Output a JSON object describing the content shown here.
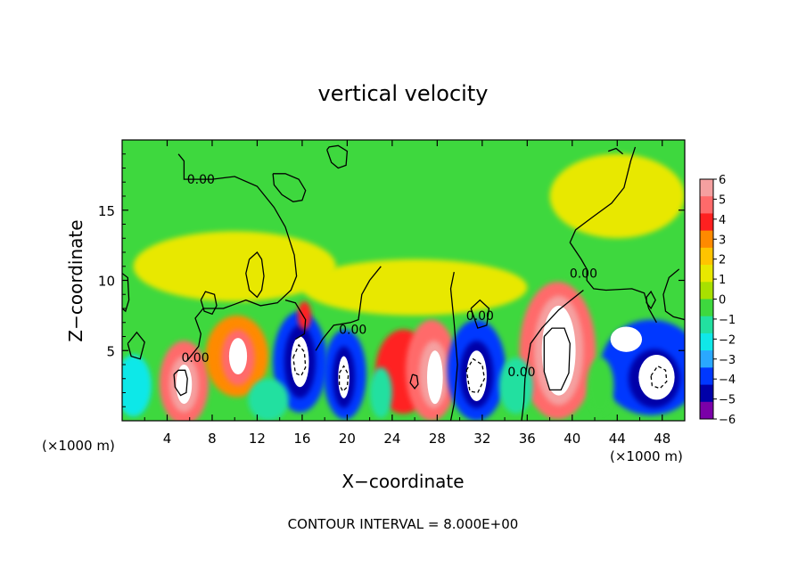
{
  "chart_data": {
    "type": "heatmap",
    "title": "vertical velocity",
    "xlabel": "X−coordinate",
    "ylabel": "Z−coordinate",
    "x_unit_left": "(×1000 m)",
    "x_unit_right": "(×1000 m)",
    "footer": "CONTOUR INTERVAL = 8.000E+00",
    "xlim": [
      0,
      50
    ],
    "ylim": [
      0,
      20
    ],
    "x_ticks": [
      4,
      8,
      12,
      16,
      20,
      24,
      28,
      32,
      36,
      40,
      44,
      48
    ],
    "y_ticks": [
      5,
      10,
      15
    ],
    "contour_labels": [
      {
        "text": "0.00",
        "x": 7.0,
        "y": 17.2
      },
      {
        "text": "0.00",
        "x": 6.5,
        "y": 4.5
      },
      {
        "text": "0.00",
        "x": 20.5,
        "y": 6.5
      },
      {
        "text": "0.00",
        "x": 31.8,
        "y": 7.5
      },
      {
        "text": "0.00",
        "x": 35.5,
        "y": 3.5
      },
      {
        "text": "0.00",
        "x": 41.0,
        "y": 10.5
      }
    ],
    "colorbar": {
      "min": -6,
      "max": 6,
      "labels": [
        6,
        5,
        4,
        3,
        2,
        1,
        0,
        -1,
        -2,
        -3,
        -4,
        -5,
        -6
      ],
      "colors": [
        "#f5a0a0",
        "#ff6a6a",
        "#ff2020",
        "#ff8a00",
        "#ffc400",
        "#e8e800",
        "#a8e000",
        "#3ed83e",
        "#22e0a0",
        "#10e8e8",
        "#2aa8ff",
        "#0038ff",
        "#0000a8",
        "#7a00a8"
      ]
    },
    "cells": [
      {
        "x": 5.5,
        "y": 2.7,
        "rx": 2.2,
        "ry": 3.0,
        "v": 4.5
      },
      {
        "x": 5.5,
        "y": 2.6,
        "rx": 1.3,
        "ry": 2.0,
        "v": 5.5
      },
      {
        "x": 5.5,
        "y": 2.6,
        "rx": 0.7,
        "ry": 1.4,
        "v": 6.6
      },
      {
        "x": 10.2,
        "y": 4.6,
        "rx": 2.8,
        "ry": 2.9,
        "v": 3.2
      },
      {
        "x": 10.3,
        "y": 4.5,
        "rx": 1.5,
        "ry": 2.0,
        "v": 5.0
      },
      {
        "x": 10.3,
        "y": 4.6,
        "rx": 0.8,
        "ry": 1.3,
        "v": 6.6
      },
      {
        "x": 15.8,
        "y": 4.2,
        "rx": 2.4,
        "ry": 3.6,
        "v": -4.5
      },
      {
        "x": 15.8,
        "y": 4.2,
        "rx": 1.4,
        "ry": 2.6,
        "v": -5.5
      },
      {
        "x": 15.8,
        "y": 4.2,
        "rx": 0.8,
        "ry": 1.8,
        "v": -6.6
      },
      {
        "x": 19.8,
        "y": 3.3,
        "rx": 1.9,
        "ry": 3.2,
        "v": -4.5
      },
      {
        "x": 19.7,
        "y": 3.1,
        "rx": 1.0,
        "ry": 2.2,
        "v": -5.5
      },
      {
        "x": 19.7,
        "y": 3.1,
        "rx": 0.5,
        "ry": 1.5,
        "v": -6.6
      },
      {
        "x": 25.0,
        "y": 3.5,
        "rx": 2.5,
        "ry": 3.0,
        "v": 3.5
      },
      {
        "x": 27.5,
        "y": 3.6,
        "rx": 2.3,
        "ry": 3.6,
        "v": 4.6
      },
      {
        "x": 27.7,
        "y": 3.3,
        "rx": 1.3,
        "ry": 2.4,
        "v": 5.6
      },
      {
        "x": 27.8,
        "y": 3.1,
        "rx": 0.7,
        "ry": 1.9,
        "v": 6.6
      },
      {
        "x": 31.5,
        "y": 3.6,
        "rx": 2.6,
        "ry": 3.6,
        "v": -4.5
      },
      {
        "x": 31.5,
        "y": 3.3,
        "rx": 1.5,
        "ry": 2.4,
        "v": -5.5
      },
      {
        "x": 31.5,
        "y": 3.2,
        "rx": 0.9,
        "ry": 1.8,
        "v": -6.6
      },
      {
        "x": 38.7,
        "y": 5.0,
        "rx": 3.4,
        "ry": 4.9,
        "v": 4.5
      },
      {
        "x": 38.8,
        "y": 5.0,
        "rx": 2.2,
        "ry": 3.9,
        "v": 5.6
      },
      {
        "x": 38.8,
        "y": 5.0,
        "rx": 1.5,
        "ry": 3.2,
        "v": 6.6
      },
      {
        "x": 47.0,
        "y": 3.8,
        "rx": 4.5,
        "ry": 3.4,
        "v": -4.5
      },
      {
        "x": 47.3,
        "y": 3.0,
        "rx": 2.3,
        "ry": 2.1,
        "v": -5.5
      },
      {
        "x": 47.5,
        "y": 3.1,
        "rx": 1.6,
        "ry": 1.6,
        "v": -6.6
      },
      {
        "x": 44.8,
        "y": 5.8,
        "rx": 1.4,
        "ry": 0.9,
        "v": -6.6
      },
      {
        "x": 1.0,
        "y": 2.5,
        "rx": 1.6,
        "ry": 2.2,
        "v": -2.5
      },
      {
        "x": 16.2,
        "y": 7.5,
        "rx": 0.6,
        "ry": 1.0,
        "v": 4.0
      },
      {
        "x": 13.0,
        "y": 1.5,
        "rx": 1.8,
        "ry": 1.5,
        "v": -1.5
      },
      {
        "x": 23.0,
        "y": 2.0,
        "rx": 1.0,
        "ry": 1.8,
        "v": -1.6
      },
      {
        "x": 35.0,
        "y": 2.5,
        "rx": 1.5,
        "ry": 2.0,
        "v": -1.5
      },
      {
        "x": 42.5,
        "y": 2.5,
        "rx": 1.2,
        "ry": 2.0,
        "v": -1.2
      },
      {
        "x": 10.0,
        "y": 11.0,
        "rx": 9.0,
        "ry": 2.5,
        "v": 0.7
      },
      {
        "x": 26.0,
        "y": 9.5,
        "rx": 10.0,
        "ry": 2.0,
        "v": 0.9
      },
      {
        "x": 44.0,
        "y": 16.0,
        "rx": 6.0,
        "ry": 3.0,
        "v": 0.9
      }
    ],
    "contours": [
      {
        "style": "solid",
        "pts": [
          [
            5,
            19
          ],
          [
            5.5,
            18.5
          ],
          [
            5.5,
            17.2
          ],
          [
            8,
            17.2
          ],
          [
            10,
            17.4
          ],
          [
            12,
            16.7
          ],
          [
            13.5,
            15.2
          ],
          [
            14.5,
            13.8
          ],
          [
            15.3,
            11.8
          ],
          [
            15.5,
            10.3
          ],
          [
            15.0,
            9.3
          ],
          [
            13.8,
            8.4
          ],
          [
            12.3,
            8.2
          ],
          [
            11.0,
            8.6
          ],
          [
            10.0,
            8.3
          ],
          [
            9.0,
            8.0
          ],
          [
            7.2,
            8.0
          ],
          [
            6.5,
            7.3
          ],
          [
            7.0,
            6.2
          ],
          [
            6.8,
            5.3
          ],
          [
            5.8,
            4.3
          ]
        ]
      },
      {
        "style": "solid",
        "pts": [
          [
            13.4,
            17.6
          ],
          [
            14.5,
            17.6
          ],
          [
            15.7,
            17.2
          ],
          [
            16.3,
            16.4
          ],
          [
            16.0,
            15.7
          ],
          [
            15.2,
            15.6
          ],
          [
            14.2,
            16.1
          ],
          [
            13.5,
            16.8
          ],
          [
            13.4,
            17.6
          ]
        ]
      },
      {
        "style": "solid",
        "pts": [
          [
            18.2,
            19.3
          ],
          [
            18.6,
            18.4
          ],
          [
            19.2,
            18.0
          ],
          [
            19.9,
            18.2
          ],
          [
            20.0,
            19.2
          ],
          [
            19.2,
            19.6
          ],
          [
            18.4,
            19.5
          ],
          [
            18.2,
            19.3
          ]
        ]
      },
      {
        "style": "solid",
        "pts": [
          [
            11.3,
            11.5
          ],
          [
            12.0,
            12.0
          ],
          [
            12.4,
            11.5
          ],
          [
            12.6,
            10.3
          ],
          [
            12.4,
            9.3
          ],
          [
            12.0,
            8.8
          ],
          [
            11.3,
            9.3
          ],
          [
            11.0,
            10.5
          ],
          [
            11.3,
            11.5
          ]
        ]
      },
      {
        "style": "solid",
        "pts": [
          [
            7.0,
            8.6
          ],
          [
            7.4,
            9.2
          ],
          [
            8.2,
            9.0
          ],
          [
            8.4,
            8.2
          ],
          [
            8.0,
            7.6
          ],
          [
            7.3,
            7.8
          ],
          [
            7.0,
            8.6
          ]
        ]
      },
      {
        "style": "solid",
        "pts": [
          [
            0,
            10.5
          ],
          [
            0.5,
            10.2
          ],
          [
            0.6,
            8.6
          ],
          [
            0.3,
            7.8
          ],
          [
            0,
            8.0
          ]
        ]
      },
      {
        "style": "solid",
        "pts": [
          [
            0.5,
            5.5
          ],
          [
            1.3,
            6.3
          ],
          [
            2.0,
            5.6
          ],
          [
            1.6,
            4.4
          ],
          [
            0.8,
            4.6
          ],
          [
            0.5,
            5.5
          ]
        ]
      },
      {
        "style": "solid",
        "pts": [
          [
            49.5,
            10.8
          ],
          [
            48.6,
            10.2
          ],
          [
            48.1,
            9.0
          ],
          [
            48.3,
            7.8
          ],
          [
            49.0,
            7.4
          ],
          [
            50,
            7.2
          ]
        ]
      },
      {
        "style": "solid",
        "pts": [
          [
            46.6,
            8.8
          ],
          [
            47.0,
            9.2
          ],
          [
            47.4,
            8.6
          ],
          [
            47.0,
            8.0
          ],
          [
            46.6,
            8.4
          ],
          [
            46.6,
            8.8
          ]
        ]
      },
      {
        "style": "solid",
        "pts": [
          [
            23.0,
            11.0
          ],
          [
            22.0,
            10.0
          ],
          [
            21.3,
            9.0
          ],
          [
            21.0,
            7.2
          ],
          [
            20.3,
            7.0
          ],
          [
            18.8,
            6.8
          ],
          [
            17.8,
            5.8
          ],
          [
            17.2,
            5.0
          ]
        ]
      },
      {
        "style": "solid",
        "pts": [
          [
            14.5,
            8.6
          ],
          [
            15.4,
            8.4
          ],
          [
            16.3,
            7.2
          ],
          [
            16.2,
            6.2
          ],
          [
            15.4,
            5.8
          ]
        ]
      },
      {
        "style": "solid",
        "pts": [
          [
            29.5,
            10.6
          ],
          [
            29.2,
            9.4
          ],
          [
            29.5,
            7.0
          ],
          [
            29.8,
            4.0
          ],
          [
            29.5,
            1.2
          ],
          [
            29.2,
            0
          ]
        ]
      },
      {
        "style": "solid",
        "pts": [
          [
            31.0,
            8.0
          ],
          [
            31.8,
            8.6
          ],
          [
            32.6,
            8.0
          ],
          [
            32.4,
            6.8
          ],
          [
            31.6,
            6.6
          ],
          [
            31.0,
            8.0
          ]
        ]
      },
      {
        "style": "solid",
        "pts": [
          [
            35.5,
            0
          ],
          [
            35.7,
            1.3
          ],
          [
            35.8,
            3.0
          ],
          [
            36.3,
            5.5
          ],
          [
            37.3,
            6.6
          ],
          [
            38.8,
            7.9
          ],
          [
            41.0,
            9.3
          ]
        ]
      },
      {
        "style": "solid",
        "pts": [
          [
            45.6,
            19.5
          ],
          [
            45.2,
            18.5
          ],
          [
            44.6,
            16.6
          ],
          [
            43.5,
            15.5
          ],
          [
            41.8,
            14.5
          ],
          [
            40.3,
            13.6
          ],
          [
            39.8,
            12.7
          ],
          [
            40.8,
            11.5
          ],
          [
            41.3,
            10.8
          ],
          [
            41.3,
            10.0
          ],
          [
            41.9,
            9.4
          ],
          [
            43.0,
            9.3
          ],
          [
            45.3,
            9.4
          ],
          [
            46.4,
            9.1
          ],
          [
            46.8,
            8.0
          ],
          [
            47.5,
            7.0
          ]
        ]
      },
      {
        "style": "solid",
        "pts": [
          [
            43.2,
            19.2
          ],
          [
            43.9,
            19.4
          ],
          [
            44.5,
            19.0
          ]
        ]
      },
      {
        "style": "solid",
        "pts": [
          [
            4.6,
            3.3
          ],
          [
            5.0,
            3.6
          ],
          [
            5.6,
            3.6
          ],
          [
            5.8,
            3.0
          ],
          [
            5.7,
            2.0
          ],
          [
            5.2,
            1.8
          ],
          [
            4.7,
            2.4
          ],
          [
            4.6,
            3.3
          ]
        ]
      },
      {
        "style": "solid",
        "pts": [
          [
            37.5,
            6.0
          ],
          [
            38.2,
            6.6
          ],
          [
            39.3,
            6.6
          ],
          [
            39.8,
            5.5
          ],
          [
            39.7,
            3.4
          ],
          [
            39.0,
            2.2
          ],
          [
            38.0,
            2.2
          ],
          [
            37.5,
            3.5
          ],
          [
            37.5,
            6.0
          ]
        ]
      },
      {
        "style": "solid",
        "pts": [
          [
            25.8,
            3.3
          ],
          [
            26.2,
            3.2
          ],
          [
            26.3,
            2.6
          ],
          [
            26.0,
            2.3
          ],
          [
            25.6,
            2.7
          ],
          [
            25.8,
            3.3
          ]
        ]
      },
      {
        "style": "dash",
        "pts": [
          [
            15.2,
            4.5
          ],
          [
            15.7,
            5.4
          ],
          [
            16.2,
            4.9
          ],
          [
            16.3,
            3.8
          ],
          [
            15.9,
            3.2
          ],
          [
            15.4,
            3.4
          ],
          [
            15.2,
            4.5
          ]
        ]
      },
      {
        "style": "dash",
        "pts": [
          [
            19.3,
            3.4
          ],
          [
            19.7,
            3.9
          ],
          [
            20.1,
            3.3
          ],
          [
            20.0,
            2.4
          ],
          [
            19.6,
            2.1
          ],
          [
            19.3,
            2.6
          ],
          [
            19.3,
            3.4
          ]
        ]
      },
      {
        "style": "dash",
        "pts": [
          [
            30.6,
            3.6
          ],
          [
            31.2,
            4.4
          ],
          [
            32.0,
            4.0
          ],
          [
            32.2,
            3.0
          ],
          [
            31.6,
            2.0
          ],
          [
            30.9,
            2.1
          ],
          [
            30.6,
            3.6
          ]
        ]
      },
      {
        "style": "dash",
        "pts": [
          [
            47.0,
            3.2
          ],
          [
            47.6,
            3.9
          ],
          [
            48.3,
            3.6
          ],
          [
            48.4,
            2.8
          ],
          [
            47.8,
            2.3
          ],
          [
            47.1,
            2.5
          ],
          [
            47.0,
            3.2
          ]
        ]
      }
    ]
  }
}
